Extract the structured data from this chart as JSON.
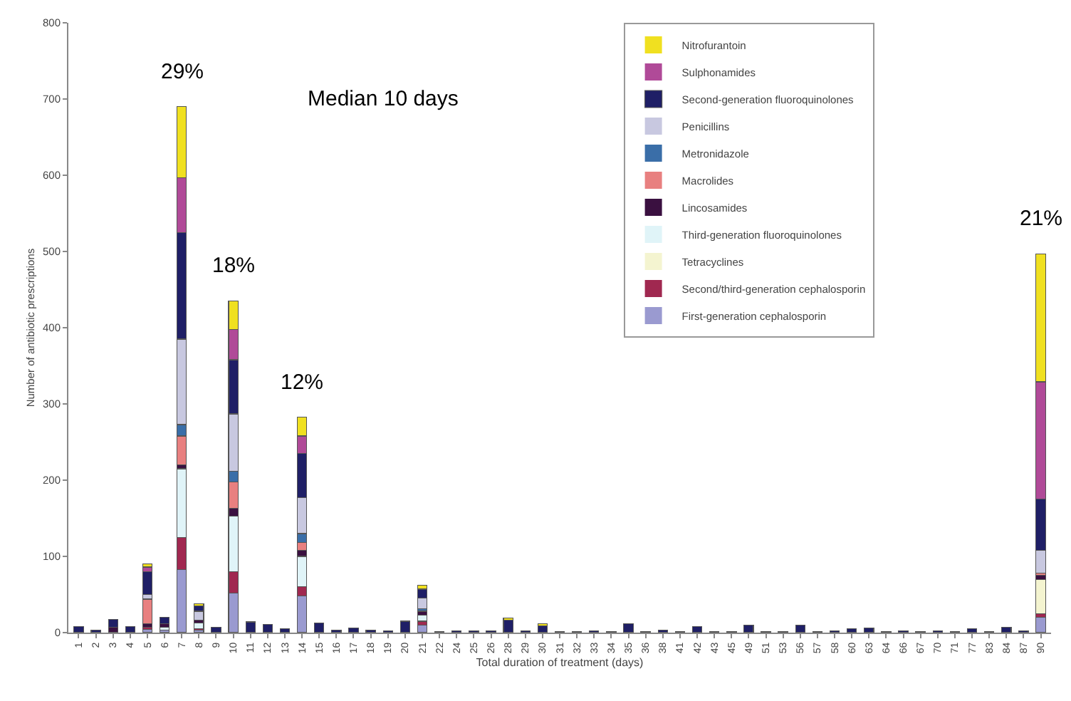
{
  "chart_data": {
    "type": "bar",
    "stacked": true,
    "xlabel": "Total duration of treatment (days)",
    "ylabel": "Number of antibiotic prescriptions",
    "categories": [
      "1",
      "2",
      "3",
      "4",
      "5",
      "6",
      "7",
      "8",
      "9",
      "10",
      "11",
      "12",
      "13",
      "14",
      "15",
      "16",
      "17",
      "18",
      "19",
      "20",
      "21",
      "22",
      "24",
      "25",
      "26",
      "28",
      "29",
      "30",
      "31",
      "32",
      "33",
      "34",
      "35",
      "36",
      "38",
      "41",
      "42",
      "43",
      "45",
      "49",
      "51",
      "53",
      "56",
      "57",
      "58",
      "60",
      "63",
      "64",
      "66",
      "67",
      "70",
      "71",
      "77",
      "83",
      "84",
      "87",
      "90"
    ],
    "ylim": [
      0,
      800
    ],
    "yticks": [
      0,
      100,
      200,
      300,
      400,
      500,
      600,
      700,
      800
    ],
    "legend": "top right",
    "series": [
      {
        "name": "First-generation cephalosporin",
        "color": "#9a9ad0",
        "values": [
          0,
          0,
          0,
          0,
          4,
          3,
          83,
          3,
          0,
          52,
          0,
          0,
          0,
          48,
          0,
          0,
          0,
          0,
          0,
          0,
          10,
          0,
          0,
          0,
          0,
          0,
          0,
          0,
          0,
          0,
          0,
          0,
          0,
          0,
          0,
          0,
          0,
          0,
          0,
          0,
          0,
          0,
          0,
          0,
          0,
          0,
          0,
          0,
          0,
          0,
          0,
          0,
          0,
          0,
          0,
          0,
          20
        ]
      },
      {
        "name": "Second/third-generation cephalosporin",
        "color": "#a02850",
        "values": [
          0,
          0,
          0,
          0,
          3,
          0,
          42,
          2,
          0,
          28,
          0,
          0,
          0,
          12,
          0,
          0,
          0,
          0,
          0,
          0,
          5,
          0,
          0,
          0,
          0,
          0,
          0,
          0,
          0,
          0,
          0,
          0,
          0,
          0,
          0,
          0,
          0,
          0,
          0,
          0,
          0,
          0,
          0,
          0,
          0,
          0,
          0,
          0,
          0,
          0,
          0,
          0,
          0,
          0,
          0,
          0,
          5
        ]
      },
      {
        "name": "Tetracyclines",
        "color": "#f4f4d0",
        "values": [
          0,
          0,
          0,
          0,
          0,
          0,
          0,
          0,
          0,
          0,
          0,
          0,
          0,
          0,
          0,
          0,
          0,
          0,
          0,
          0,
          0,
          0,
          0,
          0,
          0,
          0,
          0,
          0,
          0,
          0,
          0,
          0,
          0,
          0,
          0,
          0,
          0,
          0,
          0,
          0,
          0,
          0,
          0,
          0,
          0,
          0,
          0,
          0,
          0,
          0,
          0,
          0,
          0,
          0,
          0,
          0,
          45
        ]
      },
      {
        "name": "Third-generation fluoroquinolones",
        "color": "#e0f4f8",
        "values": [
          0,
          0,
          0,
          0,
          0,
          4,
          90,
          8,
          0,
          73,
          0,
          0,
          0,
          40,
          0,
          0,
          0,
          0,
          0,
          0,
          8,
          0,
          0,
          0,
          0,
          0,
          0,
          0,
          0,
          0,
          0,
          0,
          0,
          0,
          0,
          0,
          0,
          0,
          0,
          0,
          0,
          0,
          0,
          0,
          0,
          0,
          0,
          0,
          0,
          0,
          0,
          0,
          0,
          0,
          0,
          0,
          0
        ]
      },
      {
        "name": "Lincosamides",
        "color": "#3a1040",
        "values": [
          0,
          0,
          7,
          0,
          5,
          5,
          5,
          3,
          0,
          10,
          0,
          0,
          0,
          8,
          0,
          0,
          0,
          0,
          0,
          0,
          5,
          0,
          0,
          0,
          0,
          0,
          0,
          0,
          0,
          0,
          0,
          0,
          0,
          0,
          0,
          0,
          0,
          0,
          0,
          0,
          0,
          0,
          0,
          0,
          0,
          0,
          0,
          0,
          0,
          0,
          0,
          0,
          0,
          0,
          0,
          0,
          5
        ]
      },
      {
        "name": "Macrolides",
        "color": "#e88080",
        "values": [
          0,
          0,
          0,
          0,
          32,
          0,
          38,
          0,
          0,
          35,
          0,
          0,
          0,
          10,
          0,
          0,
          0,
          0,
          0,
          0,
          0,
          0,
          0,
          0,
          0,
          0,
          0,
          0,
          0,
          0,
          0,
          0,
          0,
          0,
          0,
          0,
          0,
          0,
          0,
          0,
          0,
          0,
          0,
          0,
          0,
          0,
          0,
          0,
          0,
          0,
          0,
          0,
          0,
          0,
          0,
          0,
          3
        ]
      },
      {
        "name": "Metronidazole",
        "color": "#3a6ea8",
        "values": [
          0,
          0,
          0,
          0,
          0,
          0,
          15,
          0,
          0,
          14,
          0,
          0,
          0,
          12,
          0,
          0,
          0,
          0,
          0,
          0,
          3,
          0,
          0,
          0,
          0,
          0,
          0,
          0,
          0,
          0,
          0,
          0,
          0,
          0,
          0,
          0,
          0,
          0,
          0,
          0,
          0,
          0,
          0,
          0,
          0,
          0,
          0,
          0,
          0,
          0,
          0,
          0,
          0,
          0,
          0,
          0,
          0
        ]
      },
      {
        "name": "Penicillins",
        "color": "#c8c8e0",
        "values": [
          0,
          0,
          0,
          0,
          6,
          0,
          112,
          12,
          0,
          75,
          0,
          0,
          0,
          47,
          0,
          0,
          0,
          0,
          0,
          0,
          14,
          0,
          0,
          0,
          0,
          0,
          0,
          0,
          0,
          0,
          0,
          0,
          0,
          0,
          0,
          0,
          0,
          0,
          0,
          0,
          0,
          0,
          0,
          0,
          0,
          0,
          0,
          0,
          0,
          0,
          0,
          0,
          0,
          0,
          0,
          0,
          30
        ]
      },
      {
        "name": "Second-generation fluoroquinolones",
        "color": "#1f1f66",
        "values": [
          8,
          3,
          10,
          8,
          30,
          8,
          140,
          7,
          7,
          71,
          14,
          11,
          5,
          58,
          13,
          3,
          6,
          3,
          2,
          15,
          12,
          1,
          2,
          2,
          2,
          16,
          2,
          9,
          1,
          1,
          2,
          1,
          12,
          1,
          3,
          1,
          8,
          1,
          1,
          10,
          1,
          1,
          10,
          1,
          2,
          5,
          6,
          1,
          2,
          1,
          2,
          1,
          5,
          1,
          7,
          2,
          67
        ]
      },
      {
        "name": "Sulphonamides",
        "color": "#b04a98",
        "values": [
          0,
          0,
          0,
          0,
          6,
          0,
          72,
          0,
          0,
          40,
          0,
          0,
          0,
          23,
          0,
          0,
          0,
          0,
          0,
          0,
          0,
          0,
          0,
          0,
          0,
          0,
          0,
          0,
          0,
          0,
          0,
          0,
          0,
          0,
          0,
          0,
          0,
          0,
          0,
          0,
          0,
          0,
          0,
          0,
          0,
          0,
          0,
          0,
          0,
          0,
          0,
          0,
          0,
          0,
          0,
          0,
          154
        ]
      },
      {
        "name": "Nitrofurantoin",
        "color": "#f0e020",
        "values": [
          0,
          0,
          0,
          0,
          4,
          0,
          93,
          3,
          0,
          37,
          0,
          0,
          0,
          25,
          0,
          0,
          0,
          0,
          0,
          0,
          5,
          0,
          0,
          0,
          0,
          3,
          0,
          3,
          0,
          0,
          0,
          0,
          0,
          0,
          0,
          0,
          0,
          0,
          0,
          0,
          0,
          0,
          0,
          0,
          0,
          0,
          0,
          0,
          0,
          0,
          0,
          0,
          0,
          0,
          0,
          0,
          168
        ]
      }
    ],
    "annotations": [
      {
        "text": "29%",
        "x": "7",
        "y": 690
      },
      {
        "text": "18%",
        "x": "10",
        "y": 435
      },
      {
        "text": "12%",
        "x": "14",
        "y": 283
      },
      {
        "text": "21%",
        "x": "90",
        "y": 497
      },
      "Median 10 days"
    ]
  }
}
